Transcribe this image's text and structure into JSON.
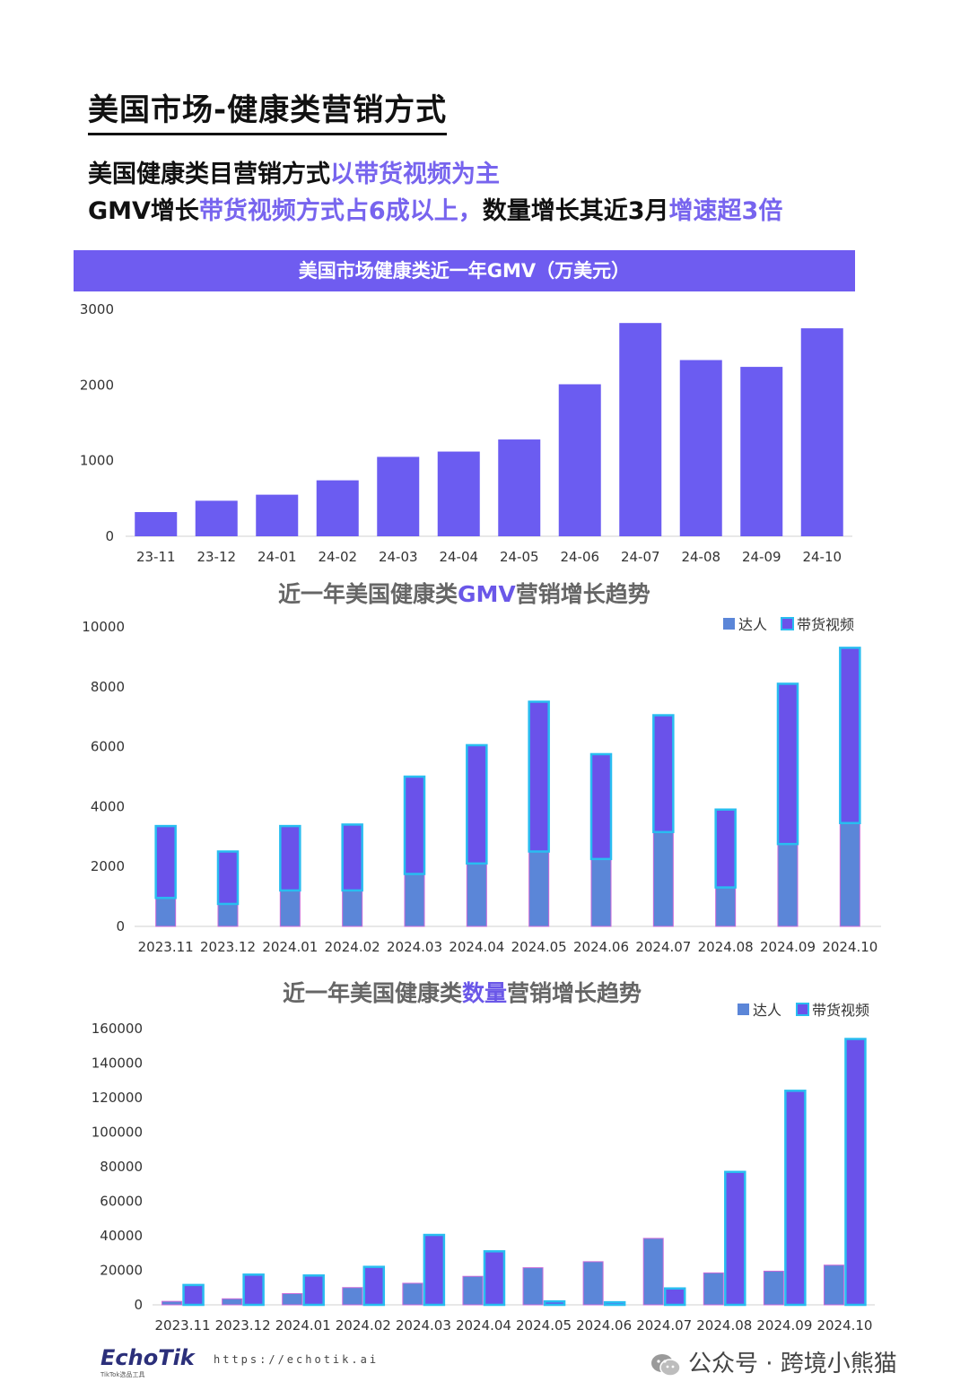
{
  "header": {
    "title": "美国市场-健康类营销方式",
    "line1": {
      "p1": "美国健康类目营销方式",
      "p2": "以带货视频为主"
    },
    "line2": {
      "p1": "GMV增长",
      "p2": "带货视频方式占6成以上，",
      "p3": "数量增长其近3月",
      "p4": "增速超3倍"
    }
  },
  "chart1_title": "美国市场健康类近一年GMV（万美元）",
  "chart2_title": {
    "p1": "近一年美国健康类",
    "p2": "GMV",
    "p3": "营销增长趋势"
  },
  "chart3_title": {
    "p1": "近一年美国健康类",
    "p2": "数量",
    "p3": "营销增长趋势"
  },
  "chart_data": [
    {
      "type": "bar",
      "title": "美国市场健康类近一年GMV（万美元）",
      "categories": [
        "23-11",
        "23-12",
        "24-01",
        "24-02",
        "24-03",
        "24-04",
        "24-05",
        "24-06",
        "24-07",
        "24-08",
        "24-09",
        "24-10"
      ],
      "values": [
        320,
        470,
        550,
        740,
        1050,
        1120,
        1280,
        2010,
        2820,
        2330,
        2240,
        2750
      ],
      "ylim": [
        0,
        3000
      ],
      "yticks": [
        0,
        1000,
        2000,
        3000
      ],
      "colors": {
        "bar": "#6b5cf1"
      },
      "grid": false
    },
    {
      "type": "bar",
      "stacked": true,
      "title": "近一年美国健康类GMV营销增长趋势",
      "categories": [
        "2023.11",
        "2023.12",
        "2024.01",
        "2024.02",
        "2024.03",
        "2024.04",
        "2024.05",
        "2024.06",
        "2024.07",
        "2024.08",
        "2024.09",
        "2024.10"
      ],
      "series": [
        {
          "name": "达人",
          "values": [
            950,
            750,
            1200,
            1200,
            1750,
            2100,
            2500,
            2250,
            3150,
            1300,
            2750,
            3450
          ]
        },
        {
          "name": "带货视频",
          "values": [
            2400,
            1750,
            2150,
            2200,
            3250,
            3950,
            5000,
            3500,
            3900,
            2600,
            5350,
            5850
          ]
        }
      ],
      "ylim": [
        0,
        10000
      ],
      "yticks": [
        0,
        2000,
        4000,
        6000,
        8000,
        10000
      ],
      "legend": "top-right",
      "colors": {
        "达人": "#5b86d8",
        "带货视频": "#6a52ea",
        "outline": "#29bdf0"
      },
      "grid": false
    },
    {
      "type": "bar",
      "grouped": true,
      "title": "近一年美国健康类数量营销增长趋势",
      "categories": [
        "2023.11",
        "2023.12",
        "2024.01",
        "2024.02",
        "2024.03",
        "2024.04",
        "2024.05",
        "2024.06",
        "2024.07",
        "2024.08",
        "2024.09",
        "2024.10"
      ],
      "series": [
        {
          "name": "达人",
          "values": [
            2000,
            3500,
            6500,
            10000,
            12500,
            16500,
            21500,
            25000,
            38500,
            18500,
            19500,
            23000
          ]
        },
        {
          "name": "带货视频",
          "values": [
            11500,
            17500,
            17000,
            22000,
            40500,
            31000,
            2000,
            1500,
            9500,
            77000,
            124000,
            154000
          ]
        }
      ],
      "ylim": [
        0,
        160000
      ],
      "yticks": [
        0,
        20000,
        40000,
        60000,
        80000,
        100000,
        120000,
        140000,
        160000
      ],
      "legend": "top-right",
      "colors": {
        "达人": "#5b86d8",
        "带货视频": "#6a52ea",
        "outline": "#29bdf0"
      },
      "grid": false
    }
  ],
  "footer": {
    "logo": "EchoTik",
    "logo_sub": "TikTok选品工具",
    "url": "https://echotik.ai",
    "wechat": "公众号 · 跨境小熊猫"
  }
}
